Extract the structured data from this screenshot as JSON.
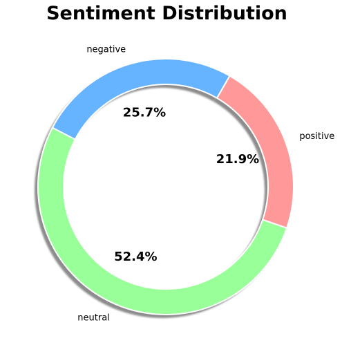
{
  "chart_data": {
    "type": "pie",
    "title": "Sentiment Distribution",
    "donut": true,
    "shadow": true,
    "start_angle_deg": 60,
    "direction": "counterclockwise",
    "slices": [
      {
        "label": "negative",
        "value": 25.7,
        "pct_label": "25.7%",
        "color": "#66b3ff"
      },
      {
        "label": "neutral",
        "value": 52.4,
        "pct_label": "52.4%",
        "color": "#99ff99"
      },
      {
        "label": "positive",
        "value": 21.9,
        "pct_label": "21.9%",
        "color": "#ff9999"
      }
    ]
  }
}
